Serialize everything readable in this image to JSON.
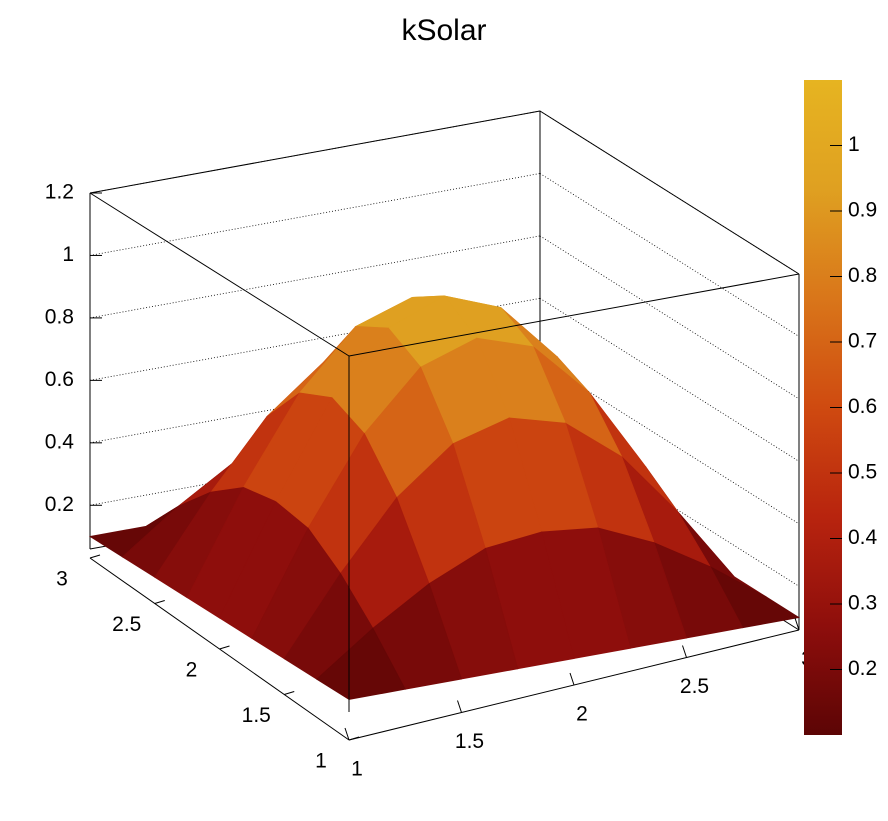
{
  "chart_data": {
    "type": "surface",
    "title": "kSolar",
    "x": [
      1,
      1.25,
      1.5,
      1.75,
      2,
      2.25,
      2.5,
      2.75,
      3
    ],
    "y": [
      1,
      1.25,
      1.5,
      1.75,
      2,
      2.25,
      2.5,
      2.75,
      3
    ],
    "z": [
      [
        0.1,
        0.1,
        0.1,
        0.1,
        0.1,
        0.1,
        0.1,
        0.1,
        0.1
      ],
      [
        0.1,
        0.23,
        0.34,
        0.42,
        0.44,
        0.42,
        0.34,
        0.23,
        0.1
      ],
      [
        0.1,
        0.34,
        0.55,
        0.69,
        0.74,
        0.69,
        0.55,
        0.34,
        0.1
      ],
      [
        0.1,
        0.42,
        0.69,
        0.87,
        0.93,
        0.87,
        0.69,
        0.42,
        0.1
      ],
      [
        0.1,
        0.44,
        0.74,
        0.93,
        1.0,
        0.93,
        0.74,
        0.44,
        0.1
      ],
      [
        0.1,
        0.42,
        0.69,
        0.87,
        0.93,
        0.87,
        0.69,
        0.42,
        0.1
      ],
      [
        0.1,
        0.34,
        0.55,
        0.69,
        0.74,
        0.69,
        0.55,
        0.34,
        0.1
      ],
      [
        0.1,
        0.23,
        0.34,
        0.42,
        0.44,
        0.42,
        0.34,
        0.23,
        0.1
      ],
      [
        0.1,
        0.1,
        0.1,
        0.1,
        0.1,
        0.1,
        0.1,
        0.1,
        0.1
      ]
    ],
    "xlim": [
      1,
      3
    ],
    "xticks": [
      1,
      1.5,
      2,
      2.5,
      3
    ],
    "ylim": [
      1,
      3
    ],
    "yticks": [
      1,
      1.5,
      2,
      2.5,
      3
    ],
    "zlim": [
      0.06,
      1.2
    ],
    "zticks": [
      0.2,
      0.4,
      0.6,
      0.8,
      1,
      1.2
    ],
    "colorbar": {
      "lim": [
        0.1,
        1.1
      ],
      "ticks": [
        0.2,
        0.3,
        0.4,
        0.5,
        0.6,
        0.7,
        0.8,
        0.9,
        1
      ]
    },
    "palette": [
      "#5c0505",
      "#8e0e0c",
      "#b8240e",
      "#cf4a10",
      "#d9761a",
      "#dfa021",
      "#e6b421"
    ],
    "grid": true
  }
}
